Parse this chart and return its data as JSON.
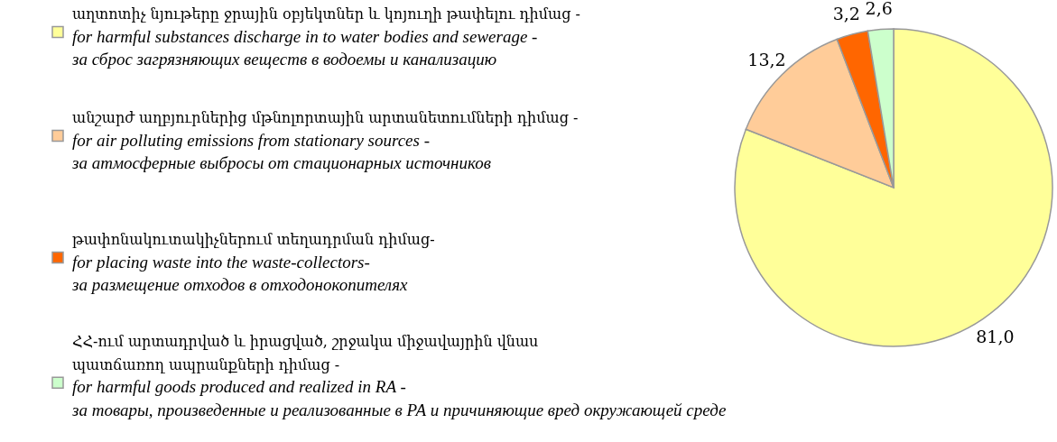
{
  "chart_data": {
    "type": "pie",
    "categories": [
      "աղտոտիչ նյութերը ջրային օբյեկտներ և կոյուղի թափելու դիմաց -\nfor harmful substances discharge in to water bodies and sewerage -\nза сброс загрязняющих веществ в водоемы и канализацию",
      "անշարժ աղբյուրներից մթնոլորտային արտանետումների դիմաց -\nfor air polluting emissions from stationary sources -\nза атмосферные выбросы от стационарных источников",
      "թափոնակուտակիչներում տեղադրման դիմաց-\nfor placing waste into the waste-collectors-\nза размещение отходов в отходонокопителях",
      "ՀՀ-ում արտադրված և իրացված, շրջակա միջավայրին վնաս\nպատճառող ապրանքների դիմաց -\nfor harmful goods produced and realized in RA -\nза товары, произведенные и реализованные в РА и причиняющие вред окружающей среде"
    ],
    "values": [
      81.0,
      13.2,
      3.2,
      2.6
    ],
    "value_labels": [
      "81,0",
      "13,2",
      "3,2",
      "2,6"
    ],
    "colors": [
      "#ffff99",
      "#ffcc99",
      "#ff6600",
      "#ccffcc"
    ],
    "legend": "left"
  }
}
